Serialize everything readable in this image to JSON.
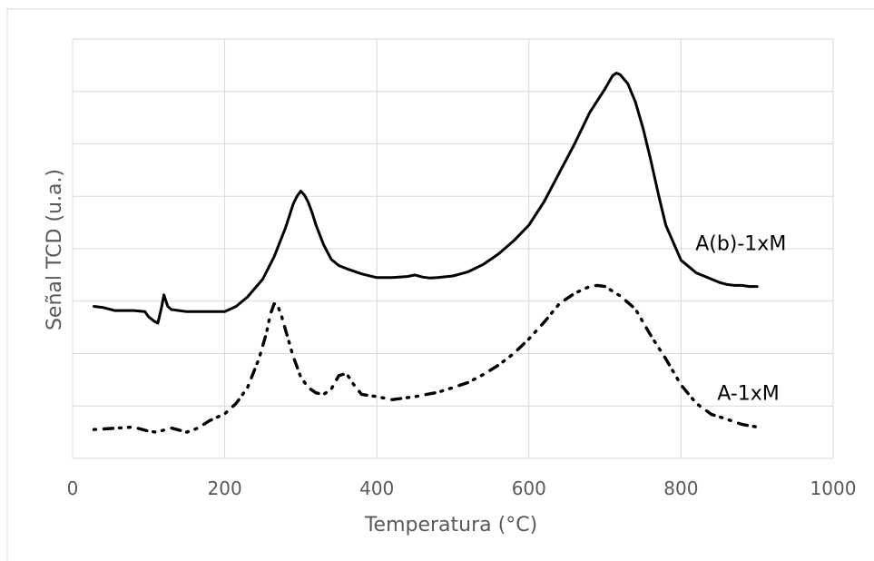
{
  "chart_data": {
    "type": "line",
    "title": "",
    "xlabel": "Temperatura (°C)",
    "ylabel": "Señal TCD (u.a.)",
    "xlim": [
      0,
      1000
    ],
    "ylim": [
      0,
      8
    ],
    "x_ticks": [
      "0",
      "200",
      "400",
      "600",
      "800",
      "1000"
    ],
    "y_ticks_labeled": false,
    "grid": true,
    "colors": {
      "series": "#000000",
      "grid": "#d9d9d9",
      "axis_text": "#595959",
      "frame": "#d9d9d9"
    },
    "series": [
      {
        "name": "A(b)-1xM",
        "line_style": "solid",
        "x": [
          28,
          40,
          55,
          80,
          95,
          100,
          107,
          112,
          117,
          120,
          125,
          130,
          150,
          200,
          215,
          230,
          250,
          265,
          280,
          290,
          295,
          300,
          305,
          310,
          315,
          320,
          330,
          340,
          350,
          360,
          380,
          400,
          420,
          440,
          450,
          460,
          470,
          480,
          500,
          520,
          540,
          560,
          580,
          600,
          620,
          640,
          660,
          680,
          700,
          710,
          715,
          720,
          730,
          740,
          750,
          760,
          770,
          780,
          800,
          820,
          830,
          840,
          850,
          860,
          870,
          880,
          890,
          900
        ],
        "y": [
          2.9,
          2.88,
          2.82,
          2.82,
          2.8,
          2.7,
          2.62,
          2.58,
          2.88,
          3.12,
          2.9,
          2.84,
          2.8,
          2.8,
          2.9,
          3.08,
          3.42,
          3.85,
          4.4,
          4.85,
          5.0,
          5.1,
          5.02,
          4.88,
          4.68,
          4.45,
          4.08,
          3.8,
          3.68,
          3.62,
          3.52,
          3.45,
          3.45,
          3.47,
          3.5,
          3.46,
          3.44,
          3.45,
          3.48,
          3.56,
          3.7,
          3.9,
          4.15,
          4.45,
          4.9,
          5.45,
          6.0,
          6.6,
          7.05,
          7.3,
          7.35,
          7.32,
          7.15,
          6.8,
          6.3,
          5.7,
          5.05,
          4.45,
          3.78,
          3.54,
          3.48,
          3.42,
          3.36,
          3.32,
          3.3,
          3.3,
          3.28,
          3.28
        ]
      },
      {
        "name": "A-1xM",
        "line_style": "dotted",
        "x": [
          28,
          60,
          80,
          100,
          110,
          130,
          150,
          165,
          180,
          200,
          215,
          230,
          245,
          255,
          260,
          265,
          270,
          275,
          280,
          285,
          290,
          300,
          310,
          320,
          330,
          340,
          350,
          360,
          370,
          380,
          400,
          420,
          450,
          480,
          500,
          520,
          540,
          560,
          580,
          600,
          620,
          640,
          660,
          680,
          690,
          700,
          720,
          740,
          760,
          780,
          800,
          820,
          840,
          860,
          880,
          900
        ],
        "y": [
          0.55,
          0.58,
          0.6,
          0.52,
          0.5,
          0.58,
          0.5,
          0.58,
          0.72,
          0.85,
          1.05,
          1.35,
          1.9,
          2.4,
          2.75,
          2.95,
          2.9,
          2.7,
          2.45,
          2.2,
          1.95,
          1.55,
          1.35,
          1.25,
          1.22,
          1.32,
          1.58,
          1.62,
          1.4,
          1.22,
          1.18,
          1.12,
          1.18,
          1.26,
          1.35,
          1.45,
          1.6,
          1.78,
          2.0,
          2.28,
          2.6,
          2.95,
          3.15,
          3.28,
          3.3,
          3.28,
          3.1,
          2.85,
          2.35,
          1.9,
          1.4,
          1.05,
          0.84,
          0.75,
          0.65,
          0.6
        ]
      }
    ]
  }
}
